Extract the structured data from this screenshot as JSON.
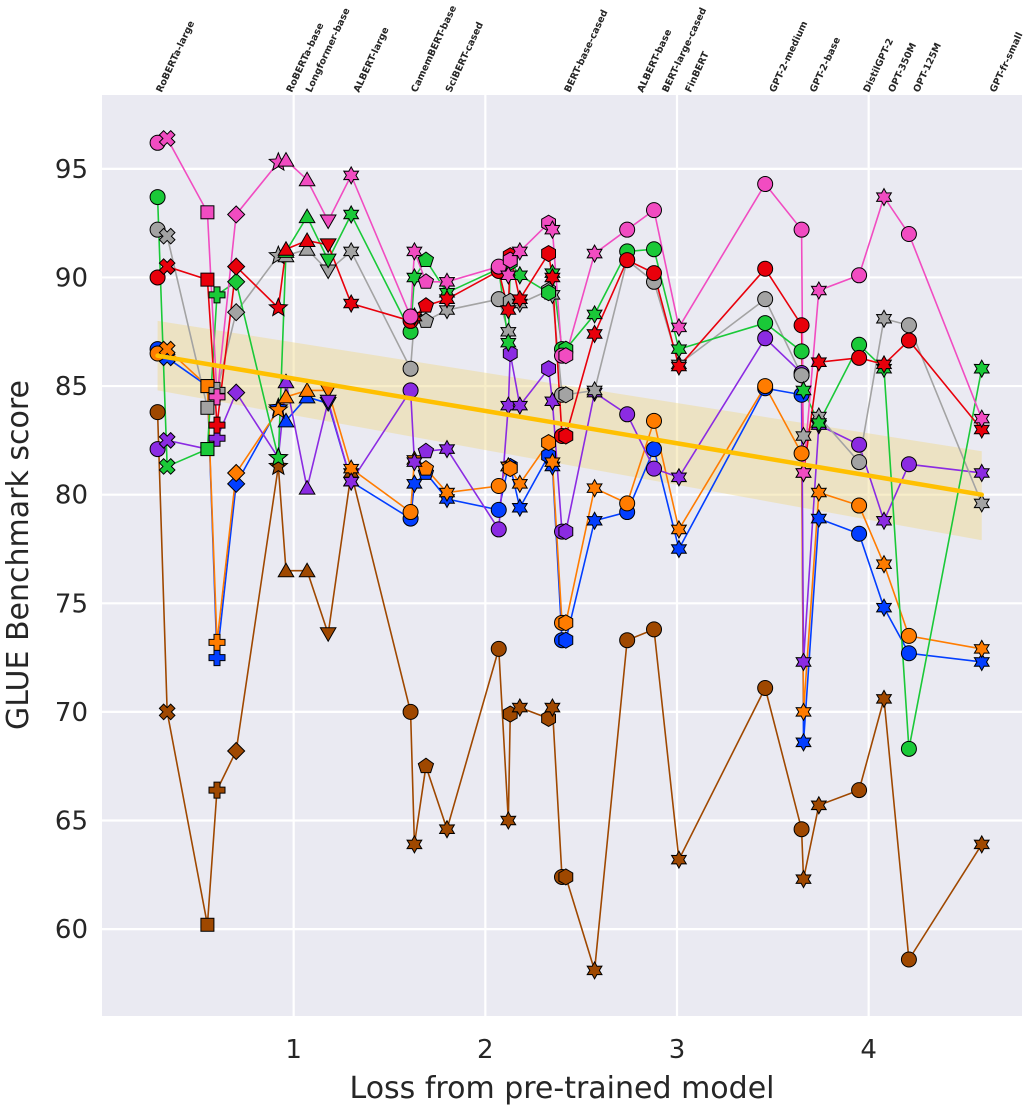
{
  "chart_data": {
    "type": "scatter",
    "title": "",
    "xlabel": "Loss from pre-trained model",
    "ylabel": "GLUE Benchmark score",
    "xlim": [
      0.0,
      4.8
    ],
    "ylim": [
      56.0,
      98.4
    ],
    "xticks": [
      1,
      2,
      3,
      4
    ],
    "yticks": [
      60,
      65,
      70,
      75,
      80,
      85,
      90,
      95
    ],
    "grid": true,
    "background": "#eaeaf2",
    "models": [
      {
        "name": "RoBERTa-large",
        "x": 0.29
      },
      {
        "name": "RoBERTa-base",
        "x": 0.97
      },
      {
        "name": "Longformer-base",
        "x": 1.07
      },
      {
        "name": "ALBERT-large",
        "x": 1.32
      },
      {
        "name": "CamemBERT-base",
        "x": 1.62
      },
      {
        "name": "SciBERT-cased",
        "x": 1.8
      },
      {
        "name": "BERT-base-cased",
        "x": 2.42
      },
      {
        "name": "ALBERT-base",
        "x": 2.8
      },
      {
        "name": "BERT-large-cased",
        "x": 2.93
      },
      {
        "name": "FinBERT",
        "x": 3.05
      },
      {
        "name": "GPT-2-medium",
        "x": 3.49
      },
      {
        "name": "GPT-2-base",
        "x": 3.7
      },
      {
        "name": "DistilGPT-2",
        "x": 3.98
      },
      {
        "name": "OPT-350M",
        "x": 4.11
      },
      {
        "name": "OPT-125M",
        "x": 4.24
      },
      {
        "name": "GPT-fr-small",
        "x": 4.64
      }
    ],
    "x": [
      0.29,
      0.34,
      0.55,
      0.6,
      0.7,
      0.92,
      0.96,
      1.07,
      1.18,
      1.3,
      1.61,
      1.63,
      1.69,
      1.8,
      2.07,
      2.12,
      2.13,
      2.18,
      2.33,
      2.35,
      2.4,
      2.42,
      2.57,
      2.74,
      2.88,
      3.01,
      3.46,
      3.65,
      3.66,
      3.74,
      3.95,
      4.08,
      4.21,
      4.59
    ],
    "series": [
      {
        "name": "",
        "color": "#e8000b",
        "values": [
          90.0,
          90.5,
          89.9,
          83.2,
          90.5,
          88.6,
          91.3,
          91.7,
          91.5,
          88.8,
          88.0,
          88.2,
          88.7,
          89.0,
          90.3,
          88.5,
          91.0,
          89.0,
          91.1,
          90.0,
          82.7,
          82.7,
          87.4,
          90.8,
          90.2,
          85.9,
          90.4,
          87.8,
          81.0,
          86.1,
          86.3,
          86.0,
          87.1,
          83.0
        ]
      },
      {
        "name": "",
        "color": "#1ac938",
        "values": [
          93.7,
          81.3,
          82.1,
          89.2,
          89.8,
          81.7,
          91.2,
          92.8,
          90.8,
          92.9,
          87.5,
          90.0,
          90.8,
          89.3,
          90.4,
          87.0,
          90.7,
          90.1,
          89.3,
          90.2,
          86.7,
          86.7,
          88.3,
          91.2,
          91.3,
          86.7,
          87.9,
          86.6,
          84.8,
          83.3,
          86.9,
          85.8,
          68.3,
          85.8
        ]
      },
      {
        "name": "",
        "color": "#a3a3a3",
        "values": [
          92.2,
          91.9,
          84.0,
          84.8,
          88.4,
          91.0,
          91.0,
          91.3,
          90.3,
          91.2,
          85.8,
          88.1,
          88.0,
          88.5,
          89.0,
          87.5,
          88.9,
          88.8,
          89.4,
          89.2,
          84.6,
          84.6,
          84.8,
          90.8,
          89.8,
          86.0,
          89.0,
          85.5,
          82.7,
          83.6,
          81.5,
          88.1,
          87.8,
          79.6
        ]
      },
      {
        "name": "",
        "color": "#f14cc1",
        "values": [
          96.2,
          96.4,
          93.0,
          84.5,
          92.9,
          95.3,
          95.4,
          94.5,
          92.6,
          94.7,
          88.2,
          91.2,
          89.8,
          89.8,
          90.5,
          90.1,
          90.8,
          91.2,
          92.5,
          92.2,
          86.4,
          86.4,
          91.1,
          92.2,
          93.1,
          87.7,
          94.3,
          92.2,
          81.0,
          89.4,
          90.1,
          93.7,
          92.0,
          83.5
        ]
      },
      {
        "name": "",
        "color": "#8b2be2",
        "values": [
          82.1,
          82.5,
          82.1,
          82.6,
          84.7,
          81.7,
          85.2,
          80.3,
          84.3,
          80.6,
          84.8,
          81.5,
          82.0,
          82.1,
          78.4,
          84.1,
          86.5,
          84.1,
          85.8,
          84.3,
          78.3,
          78.3,
          84.7,
          83.7,
          81.2,
          80.8,
          87.2,
          85.6,
          72.3,
          83.2,
          82.3,
          78.8,
          81.4,
          81.0
        ]
      },
      {
        "name": "",
        "color": "#ff7c00",
        "values": [
          86.5,
          86.7,
          85.0,
          73.2,
          81.0,
          83.9,
          84.5,
          84.8,
          84.8,
          81.2,
          79.2,
          81.6,
          81.2,
          80.1,
          80.4,
          81.3,
          81.2,
          80.5,
          82.4,
          81.5,
          74.1,
          74.1,
          80.3,
          79.6,
          83.4,
          78.4,
          85.0,
          81.9,
          70.0,
          80.1,
          79.5,
          76.8,
          73.5,
          72.9
        ]
      },
      {
        "name": "",
        "color": "#023eff",
        "values": [
          86.7,
          86.3,
          85.0,
          72.5,
          80.5,
          84.0,
          83.4,
          84.5,
          84.2,
          80.6,
          78.9,
          80.5,
          81.0,
          79.8,
          79.3,
          81.3,
          81.3,
          79.4,
          81.8,
          81.3,
          73.3,
          73.3,
          78.8,
          79.2,
          82.1,
          77.5,
          84.9,
          84.6,
          68.6,
          78.9,
          78.2,
          74.8,
          72.7,
          72.3
        ]
      },
      {
        "name": "",
        "color": "#9f4800",
        "values": [
          83.8,
          70.0,
          60.2,
          66.4,
          68.2,
          81.3,
          76.5,
          76.5,
          73.6,
          81.0,
          70.0,
          63.9,
          67.5,
          64.6,
          72.9,
          65.0,
          69.9,
          70.2,
          69.7,
          70.2,
          62.4,
          62.4,
          58.1,
          73.3,
          73.8,
          63.2,
          71.1,
          64.6,
          62.3,
          65.7,
          66.4,
          70.6,
          58.6,
          63.9
        ]
      }
    ],
    "trend": {
      "color": "#ffc000",
      "x": [
        0.29,
        4.59
      ],
      "y": [
        86.4,
        80.0
      ],
      "band_color": "#f0d98a",
      "band_upper": [
        88.0,
        82.0
      ],
      "band_lower": [
        84.8,
        77.9
      ]
    }
  }
}
